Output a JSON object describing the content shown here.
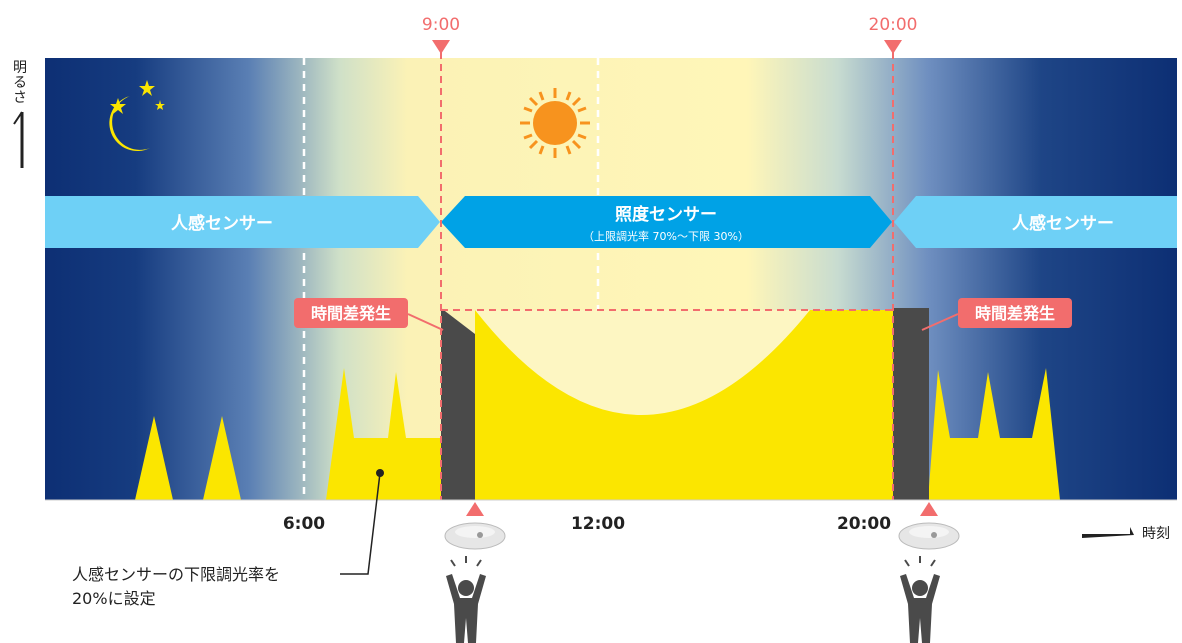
{
  "markers": {
    "start_time": "9:00",
    "end_time": "20:00"
  },
  "y_axis": {
    "label_chars": [
      "明",
      "る",
      "さ"
    ]
  },
  "x_axis": {
    "ticks": [
      "6:00",
      "12:00",
      "20:00"
    ],
    "label": "時刻"
  },
  "bands": {
    "left_label": "人感センサー",
    "center_label": "照度センサー",
    "center_sublabel": "（上限調光率 70%～下限 30%）",
    "right_label": "人感センサー"
  },
  "badges": {
    "left": "時間差発生",
    "right": "時間差発生"
  },
  "note": {
    "line1": "人感センサーの下限調光率を",
    "line2": "20%に設定"
  },
  "icons": [
    "moon-icon",
    "star-icon",
    "sun-icon",
    "sensor-icon",
    "person-icon"
  ],
  "colors": {
    "night": "#0d2f74",
    "daylight": "#fff6b8",
    "band_light": "#6ed0f6",
    "band_dark": "#00a2e6",
    "light_output": "#fbe600",
    "delay": "#4a4a4a",
    "marker": "#f26d6d"
  }
}
